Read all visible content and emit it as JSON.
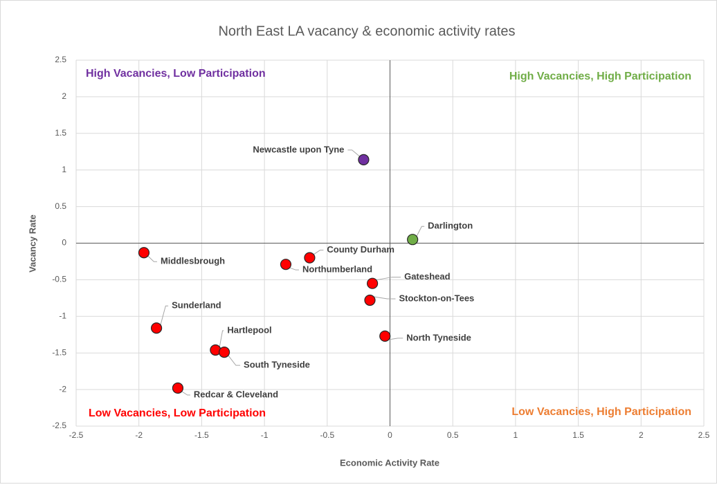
{
  "chart_data": {
    "type": "scatter",
    "title": "North East LA vacancy & economic activity rates",
    "x_label": "Economic Activity Rate",
    "y_label": "Vacancy Rate",
    "point_labels": [
      "Newcastle upon Tyne",
      "Darlington",
      "Middlesbrough",
      "County Durham",
      "Northumberland",
      "Gateshead",
      "Stockton-on-Tees",
      "Sunderland",
      "North Tyneside",
      "Hartlepool",
      "South Tyneside",
      "Redcar & Cleveland"
    ],
    "x": [
      -0.21,
      0.18,
      -1.96,
      -0.64,
      -0.83,
      -0.14,
      -0.16,
      -1.86,
      -0.04,
      -1.39,
      -1.32,
      -1.69
    ],
    "values": [
      1.14,
      0.05,
      -0.13,
      -0.2,
      -0.29,
      -0.55,
      -0.78,
      -1.16,
      -1.27,
      -1.46,
      -1.49,
      -1.98
    ],
    "colors": [
      "#7030a0",
      "#70ad47",
      "#ff0000",
      "#ff0000",
      "#ff0000",
      "#ff0000",
      "#ff0000",
      "#ff0000",
      "#ff0000",
      "#ff0000",
      "#ff0000",
      "#ff0000"
    ],
    "xlim": [
      -2.5,
      2.5
    ],
    "ylim": [
      -2.5,
      2.5
    ],
    "xticks": [
      -2.5,
      -2,
      -1.5,
      -1,
      -0.5,
      0,
      0.5,
      1,
      1.5,
      2,
      2.5
    ],
    "yticks": [
      -2.5,
      -2,
      -1.5,
      -1,
      -0.5,
      0,
      0.5,
      1,
      1.5,
      2,
      2.5
    ],
    "grid": true,
    "annotations": [
      {
        "text": "High Vacancies, Low Participation",
        "color": "#7030a0",
        "corner": "top-left"
      },
      {
        "text": "High Vacancies, High Participation",
        "color": "#70ad47",
        "corner": "top-right"
      },
      {
        "text": "Low Vacancies, Low Participation",
        "color": "#ff0000",
        "corner": "bottom-left"
      },
      {
        "text": "Low Vacancies, High Participation",
        "color": "#ed7d31",
        "corner": "bottom-right"
      }
    ]
  }
}
